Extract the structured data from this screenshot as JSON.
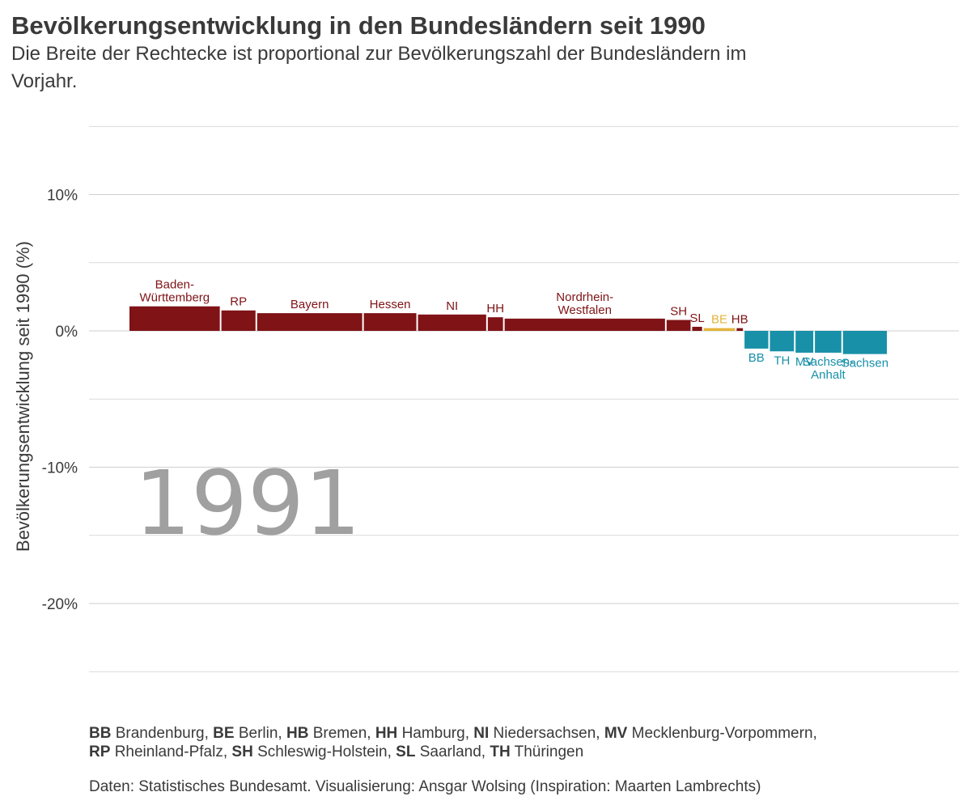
{
  "title": "Bevölkerungsentwicklung in den Bundesländern seit 1990",
  "subtitle_lines": [
    "Die Breite der Rechtecke ist proportional zur Bevölkerungszahl der Bundesländern im",
    "Vorjahr."
  ],
  "year_label": "1991",
  "legend_lines": [
    [
      {
        "abbr": "BB",
        "name": "Brandenburg,"
      },
      {
        "abbr": "BE",
        "name": "Berlin,"
      },
      {
        "abbr": "HB",
        "name": "Bremen,"
      },
      {
        "abbr": "HH",
        "name": "Hamburg,"
      },
      {
        "abbr": "NI",
        "name": "Niedersachsen,"
      },
      {
        "abbr": "MV",
        "name": "Mecklenburg-Vorpommern,"
      }
    ],
    [
      {
        "abbr": "RP",
        "name": "Rheinland-Pfalz,"
      },
      {
        "abbr": "SH",
        "name": "Schleswig-Holstein,"
      },
      {
        "abbr": "SL",
        "name": "Saarland,"
      },
      {
        "abbr": "TH",
        "name": "Thüringen"
      }
    ]
  ],
  "caption": "Daten: Statistisches Bundesamt. Visualisierung: Ansgar Wolsing (Inspiration: Maarten Lambrechts)",
  "colors": {
    "west": "#7f1316",
    "berlin": "#e5b33a",
    "east": "#1890a8",
    "grid": "#cfcfcf",
    "year": "#a0a0a0"
  },
  "chart_data": {
    "type": "bar",
    "title": "Bevölkerungsentwicklung in den Bundesländern seit 1990",
    "xlabel": "",
    "ylabel": "Bevölkerungsentwicklung seit 1990 (%)",
    "ylim": [
      -25,
      15
    ],
    "yticks": [
      10,
      0,
      -10,
      -20
    ],
    "ytick_labels": [
      "10%",
      "0%",
      "-10%",
      "-20%"
    ],
    "grid": true,
    "bar_width_encoding": "population previous year",
    "bars": [
      {
        "label": [
          "Baden-",
          "Württemberg"
        ],
        "value": 1.8,
        "population": 9.8,
        "group": "west"
      },
      {
        "label": [
          "RP"
        ],
        "value": 1.5,
        "population": 3.7,
        "group": "west"
      },
      {
        "label": [
          "Bayern"
        ],
        "value": 1.3,
        "population": 11.4,
        "group": "west"
      },
      {
        "label": [
          "Hessen"
        ],
        "value": 1.3,
        "population": 5.7,
        "group": "west"
      },
      {
        "label": [
          "NI"
        ],
        "value": 1.2,
        "population": 7.4,
        "group": "west"
      },
      {
        "label": [
          "HH"
        ],
        "value": 1.0,
        "population": 1.65,
        "group": "west"
      },
      {
        "label": [
          "Nordrhein-",
          "Westfalen"
        ],
        "value": 0.9,
        "population": 17.4,
        "group": "west"
      },
      {
        "label": [
          "SH"
        ],
        "value": 0.8,
        "population": 2.6,
        "group": "west"
      },
      {
        "label": [
          "SL"
        ],
        "value": 0.3,
        "population": 1.07,
        "group": "west"
      },
      {
        "label": [
          "BE"
        ],
        "value": 0.2,
        "population": 3.4,
        "group": "berlin"
      },
      {
        "label": [
          "HB"
        ],
        "value": 0.2,
        "population": 0.68,
        "group": "west"
      },
      {
        "label": [
          "BB"
        ],
        "value": -1.3,
        "population": 2.58,
        "group": "east"
      },
      {
        "label": [
          "TH"
        ],
        "value": -1.5,
        "population": 2.61,
        "group": "east"
      },
      {
        "label": [
          "MV"
        ],
        "value": -1.6,
        "population": 1.92,
        "group": "east"
      },
      {
        "label": [
          "Sachsen-",
          "Anhalt"
        ],
        "value": -1.6,
        "population": 2.87,
        "group": "east"
      },
      {
        "label": [
          "Sachsen"
        ],
        "value": -1.7,
        "population": 4.76,
        "group": "east"
      }
    ]
  }
}
